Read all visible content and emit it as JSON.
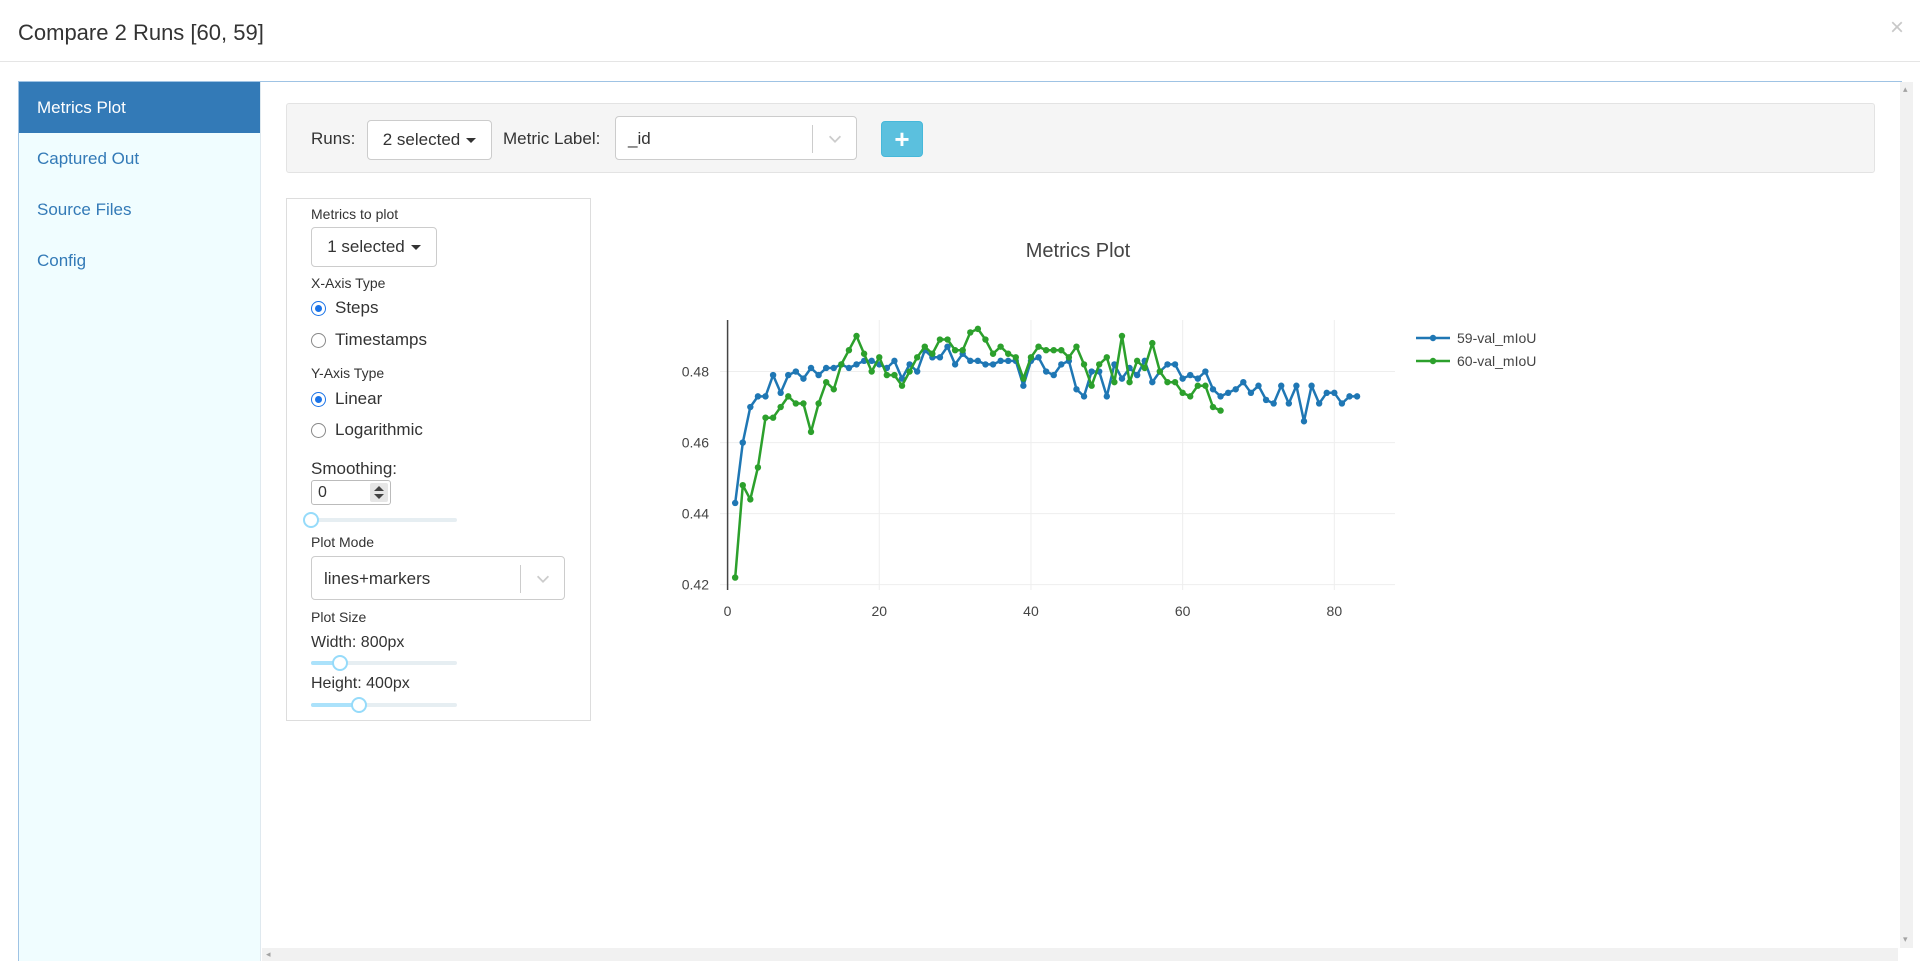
{
  "modal": {
    "title": "Compare 2 Runs [60, 59]",
    "close": "×"
  },
  "sidebar": {
    "items": [
      {
        "label": "Metrics Plot"
      },
      {
        "label": "Captured Out"
      },
      {
        "label": "Source Files"
      },
      {
        "label": "Config"
      }
    ]
  },
  "toolbar": {
    "runs_label": "Runs:",
    "runs_value": "2 selected",
    "metric_label": "Metric Label:",
    "metric_value": "_id",
    "add_label": "+"
  },
  "settings": {
    "metrics_label": "Metrics to plot",
    "metrics_value": "1 selected",
    "xaxis_label": "X-Axis Type",
    "xaxis_options": [
      "Steps",
      "Timestamps"
    ],
    "xaxis_selected": "Steps",
    "yaxis_label": "Y-Axis Type",
    "yaxis_options": [
      "Linear",
      "Logarithmic"
    ],
    "yaxis_selected": "Linear",
    "smoothing_label": "Smoothing:",
    "smoothing_value": "0",
    "plot_mode_label": "Plot Mode",
    "plot_mode_value": "lines+markers",
    "plot_size_label": "Plot Size",
    "width_label": "Width: 800px",
    "height_label": "Height: 400px",
    "smoothing_fraction": 0,
    "width_fraction": 0.2,
    "height_fraction": 0.33
  },
  "colors": {
    "accent": "#337ab7",
    "sidebar_bg": "#f0fdff",
    "series_59": "#1f77b4",
    "series_60": "#2ca02c",
    "add_button": "#5bc0de"
  },
  "chart_data": {
    "type": "line",
    "title": "Metrics Plot",
    "xlabel": "",
    "ylabel": "",
    "xlim": [
      -1,
      88
    ],
    "ylim": [
      0.4185,
      0.4945
    ],
    "xticks": [
      0,
      20,
      40,
      60,
      80
    ],
    "yticks": [
      0.42,
      0.44,
      0.46,
      0.48
    ],
    "ytick_labels": [
      "0.42",
      "0.44",
      "0.46",
      "0.48"
    ],
    "grid": true,
    "legend_position": "top-right",
    "series": [
      {
        "name": "59-val_mIoU",
        "color": "#1f77b4",
        "x": [
          1,
          2,
          3,
          4,
          5,
          6,
          7,
          8,
          9,
          10,
          11,
          12,
          13,
          14,
          15,
          16,
          17,
          18,
          19,
          20,
          21,
          22,
          23,
          24,
          25,
          26,
          27,
          28,
          29,
          30,
          31,
          32,
          33,
          34,
          35,
          36,
          37,
          38,
          39,
          40,
          41,
          42,
          43,
          44,
          45,
          46,
          47,
          48,
          49,
          50,
          51,
          52,
          53,
          54,
          55,
          56,
          57,
          58,
          59,
          60,
          61,
          62,
          63,
          64,
          65,
          66,
          67,
          68,
          69,
          70,
          71,
          72,
          73,
          74,
          75,
          76,
          77,
          78,
          79,
          80,
          81,
          82,
          83
        ],
        "values": [
          0.443,
          0.46,
          0.47,
          0.473,
          0.473,
          0.479,
          0.474,
          0.479,
          0.48,
          0.478,
          0.481,
          0.479,
          0.481,
          0.481,
          0.482,
          0.481,
          0.482,
          0.483,
          0.483,
          0.482,
          0.481,
          0.483,
          0.478,
          0.482,
          0.48,
          0.486,
          0.484,
          0.484,
          0.487,
          0.482,
          0.485,
          0.483,
          0.483,
          0.482,
          0.482,
          0.483,
          0.483,
          0.483,
          0.476,
          0.483,
          0.484,
          0.48,
          0.479,
          0.482,
          0.483,
          0.475,
          0.473,
          0.48,
          0.48,
          0.473,
          0.482,
          0.478,
          0.481,
          0.479,
          0.483,
          0.477,
          0.48,
          0.482,
          0.482,
          0.478,
          0.479,
          0.478,
          0.48,
          0.475,
          0.473,
          0.474,
          0.475,
          0.477,
          0.474,
          0.476,
          0.472,
          0.471,
          0.476,
          0.471,
          0.476,
          0.466,
          0.476,
          0.471,
          0.474,
          0.474,
          0.471,
          0.473,
          0.473
        ]
      },
      {
        "name": "60-val_mIoU",
        "color": "#2ca02c",
        "x": [
          1,
          2,
          3,
          4,
          5,
          6,
          7,
          8,
          9,
          10,
          11,
          12,
          13,
          14,
          15,
          16,
          17,
          18,
          19,
          20,
          21,
          22,
          23,
          24,
          25,
          26,
          27,
          28,
          29,
          30,
          31,
          32,
          33,
          34,
          35,
          36,
          37,
          38,
          39,
          40,
          41,
          42,
          43,
          44,
          45,
          46,
          47,
          48,
          49,
          50,
          51,
          52,
          53,
          54,
          55,
          56,
          57,
          58,
          59,
          60,
          61,
          62,
          63,
          64,
          65
        ],
        "values": [
          0.422,
          0.448,
          0.444,
          0.453,
          0.467,
          0.467,
          0.47,
          0.473,
          0.471,
          0.471,
          0.463,
          0.471,
          0.477,
          0.475,
          0.482,
          0.486,
          0.49,
          0.485,
          0.48,
          0.484,
          0.479,
          0.479,
          0.476,
          0.48,
          0.484,
          0.487,
          0.485,
          0.489,
          0.489,
          0.486,
          0.486,
          0.491,
          0.492,
          0.489,
          0.485,
          0.487,
          0.485,
          0.484,
          0.478,
          0.484,
          0.487,
          0.486,
          0.486,
          0.486,
          0.484,
          0.487,
          0.482,
          0.476,
          0.482,
          0.484,
          0.477,
          0.49,
          0.477,
          0.483,
          0.481,
          0.488,
          0.48,
          0.477,
          0.477,
          0.474,
          0.473,
          0.476,
          0.476,
          0.47,
          0.469
        ]
      }
    ]
  }
}
